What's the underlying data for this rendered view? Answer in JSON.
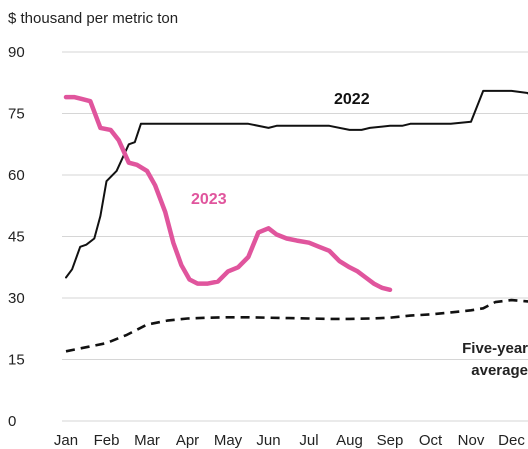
{
  "chart_data": {
    "type": "line",
    "title": "",
    "ylabel": "$ thousand per metric ton",
    "xlabel": "",
    "ylim": [
      0,
      90
    ],
    "yticks": [
      0,
      15,
      30,
      45,
      60,
      75,
      90
    ],
    "months": [
      "Jan",
      "Feb",
      "Mar",
      "Apr",
      "May",
      "Jun",
      "Jul",
      "Aug",
      "Sep",
      "Oct",
      "Nov",
      "Dec"
    ],
    "grid": true,
    "legend": "none (direct labels)",
    "series": [
      {
        "name": "2022",
        "color": "#111111",
        "style": "solid",
        "x": [
          0,
          0.15,
          0.35,
          0.5,
          0.7,
          0.85,
          1.0,
          1.25,
          1.55,
          1.7,
          1.85,
          2.0,
          2.25,
          2.5,
          2.8,
          3.0,
          3.5,
          4.0,
          4.5,
          5.0,
          5.2,
          5.4,
          6.0,
          6.5,
          7.0,
          7.3,
          7.5,
          8.0,
          8.3,
          8.5,
          9.0,
          9.5,
          10.0,
          10.3,
          10.5,
          11.0,
          11.4,
          11.6
        ],
        "values": [
          35,
          37,
          42.5,
          43,
          44.5,
          50,
          58.5,
          61,
          67.5,
          68,
          72.5,
          72.5,
          72.5,
          72.5,
          72.5,
          72.5,
          72.5,
          72.5,
          72.5,
          71.5,
          72,
          72,
          72,
          72,
          71,
          71,
          71.5,
          72,
          72,
          72.5,
          72.5,
          72.5,
          73,
          80.5,
          80.5,
          80.5,
          80,
          78
        ]
      },
      {
        "name": "2023",
        "color": "#e0559d",
        "style": "solid",
        "x": [
          0,
          0.2,
          0.4,
          0.6,
          0.85,
          1.1,
          1.3,
          1.55,
          1.75,
          2.0,
          2.2,
          2.45,
          2.65,
          2.85,
          3.05,
          3.25,
          3.5,
          3.75,
          4.0,
          4.25,
          4.5,
          4.75,
          5.0,
          5.2,
          5.45,
          5.7,
          6.0,
          6.25,
          6.5,
          6.75,
          7.0,
          7.2,
          7.4,
          7.6,
          7.8,
          8.0
        ],
        "values": [
          79,
          79,
          78.5,
          78,
          71.5,
          71,
          68.5,
          63,
          62.5,
          61,
          57.5,
          51,
          43.5,
          38,
          34.5,
          33.5,
          33.5,
          34,
          36.5,
          37.5,
          40,
          46,
          47,
          45.5,
          44.5,
          44,
          43.5,
          42.5,
          41.5,
          39,
          37.5,
          36.5,
          35,
          33.5,
          32.5,
          32
        ]
      },
      {
        "name": "Five-year average",
        "color": "#111111",
        "style": "dashed",
        "x": [
          0,
          0.5,
          1.0,
          1.5,
          2.0,
          2.5,
          3.0,
          3.5,
          4.0,
          4.5,
          5.0,
          5.5,
          6.0,
          6.5,
          7.0,
          7.5,
          8.0,
          8.5,
          9.0,
          9.5,
          10.0,
          10.3,
          10.6,
          11.0,
          11.6
        ],
        "values": [
          17,
          18,
          19,
          21,
          23.5,
          24.5,
          25,
          25.2,
          25.3,
          25.3,
          25.2,
          25.1,
          25,
          24.9,
          24.9,
          25,
          25.2,
          25.7,
          26,
          26.5,
          27,
          27.5,
          29,
          29.5,
          29
        ]
      }
    ],
    "annotations": {
      "label_2022": "2022",
      "label_2023": "2023",
      "label_avg_line1": "Five-year",
      "label_avg_line2": "average"
    }
  }
}
